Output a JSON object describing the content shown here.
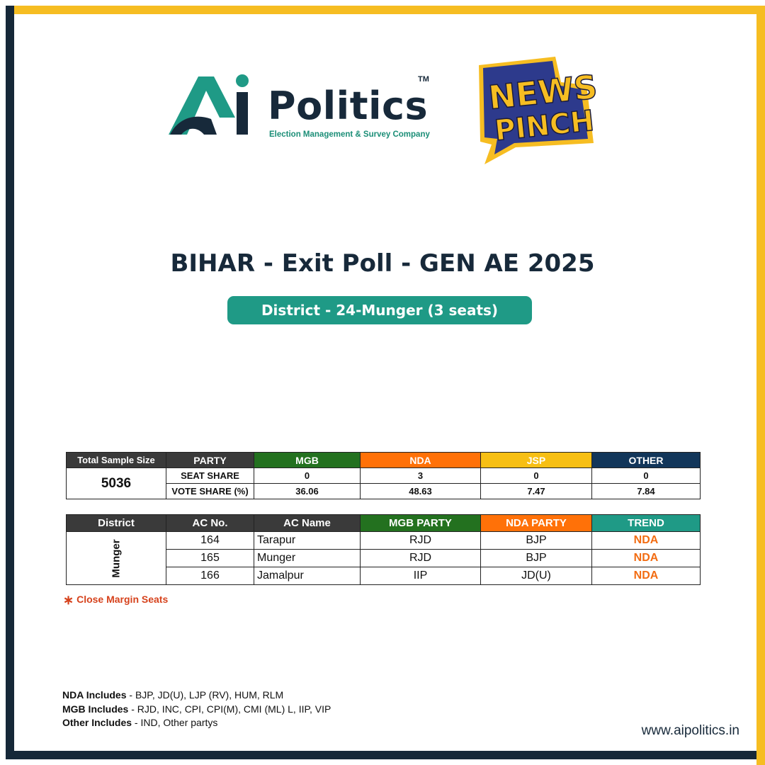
{
  "brand": {
    "ai_name": "Politics",
    "ai_tm": "TM",
    "ai_tagline": "Election Management & Survey Company",
    "newspinch_line1": "NEWS",
    "newspinch_line2": "PINCH",
    "colors": {
      "navy": "#17293a",
      "teal": "#1f9a86",
      "yellow": "#f6bd22"
    }
  },
  "title": "BIHAR - Exit Poll - GEN AE 2025",
  "subtitle": "District - 24-Munger (3 seats)",
  "summary": {
    "header_sample": "Total Sample Size",
    "header_party": "PARTY",
    "parties": [
      "MGB",
      "NDA",
      "JSP",
      "OTHER"
    ],
    "sample_size": "5036",
    "seat_share_label": "SEAT SHARE",
    "vote_share_label": "VOTE SHARE (%)",
    "seat_share": [
      "0",
      "3",
      "0",
      "0"
    ],
    "vote_share": [
      "36.06",
      "48.63",
      "7.47",
      "7.84"
    ]
  },
  "seats": {
    "headers": [
      "District",
      "AC No.",
      "AC Name",
      "MGB PARTY",
      "NDA PARTY",
      "TREND"
    ],
    "district": "Munger",
    "rows": [
      {
        "ac_no": "164",
        "ac_name": "Tarapur",
        "mgb": "RJD",
        "nda": "BJP",
        "trend": "NDA"
      },
      {
        "ac_no": "165",
        "ac_name": "Munger",
        "mgb": "RJD",
        "nda": "BJP",
        "trend": "NDA"
      },
      {
        "ac_no": "166",
        "ac_name": "Jamalpur",
        "mgb": "IIP",
        "nda": "JD(U)",
        "trend": "NDA"
      }
    ]
  },
  "close_margin": {
    "star": "∗",
    "label": "Close Margin Seats"
  },
  "notes": [
    {
      "label": "NDA Includes",
      "text": " - BJP, JD(U), LJP (RV), HUM, RLM"
    },
    {
      "label": "MGB Includes",
      "text": " - RJD, INC, CPI, CPI(M), CMI (ML) L, IIP, VIP"
    },
    {
      "label": "Other Includes",
      "text": " - IND, Other partys"
    }
  ],
  "website": "www.aipolitics.in"
}
